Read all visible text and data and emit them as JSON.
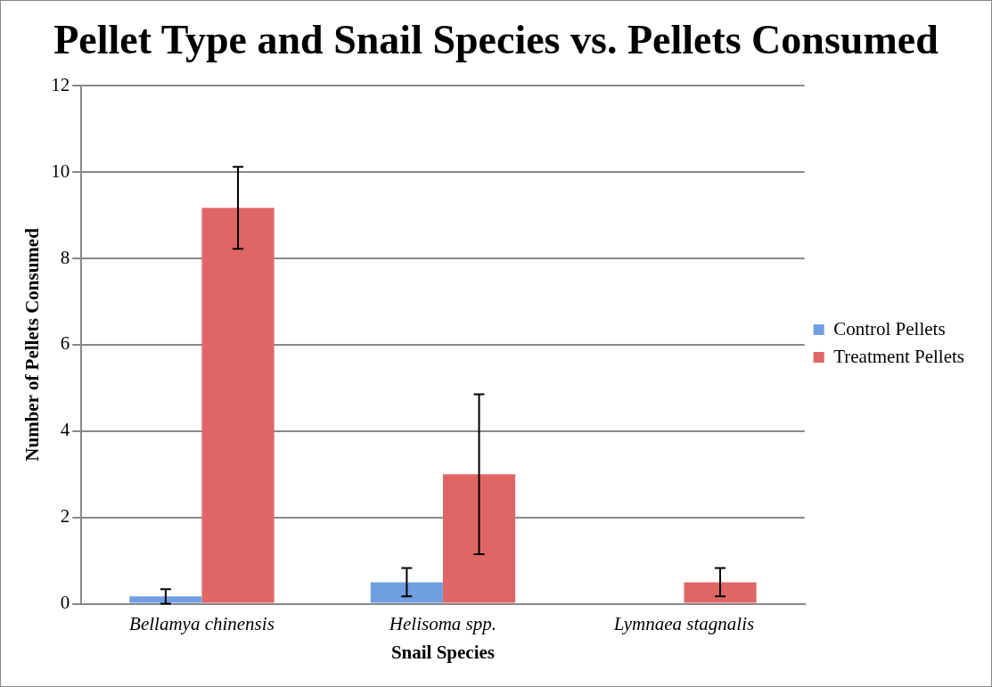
{
  "chart_data": {
    "type": "bar",
    "title": "Pellet Type and Snail Species vs. Pellets Consumed",
    "xlabel": "Snail Species",
    "ylabel": "Number of Pellets Consumed",
    "categories": [
      "Bellamya chinensis",
      "Helisoma spp.",
      "Lymnaea stagnalis"
    ],
    "series": [
      {
        "name": "Control Pellets",
        "color": "#6f9fe0",
        "values": [
          0.17,
          0.5,
          0
        ],
        "errors": [
          0.17,
          0.33,
          null
        ]
      },
      {
        "name": "Treatment Pellets",
        "color": "#e06666",
        "values": [
          9.17,
          3.0,
          0.5
        ],
        "errors": [
          0.95,
          1.85,
          0.33
        ]
      }
    ],
    "ylim": [
      0,
      12
    ],
    "yticks": [
      0,
      2,
      4,
      6,
      8,
      10,
      12
    ],
    "grid": "y",
    "legend": "right"
  }
}
